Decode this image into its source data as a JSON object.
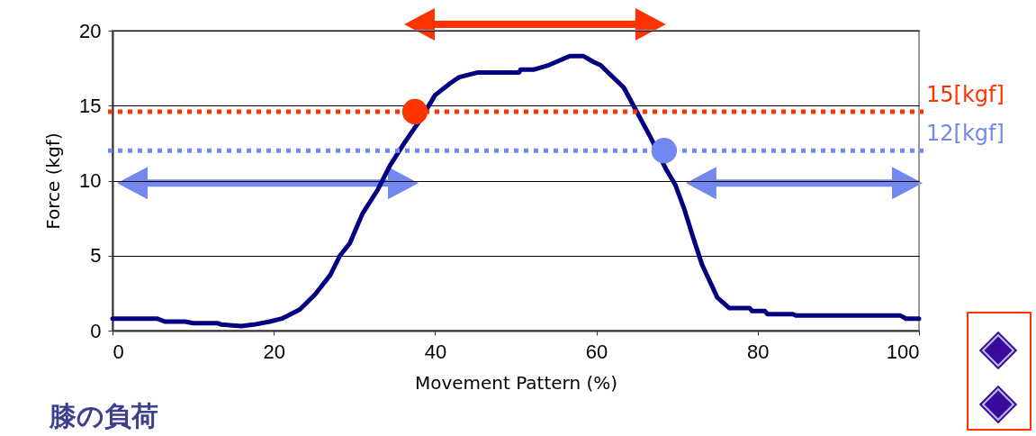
{
  "chart_data": {
    "type": "line",
    "xlabel": "Movement Pattern (%)",
    "ylabel": "Force (kgf)",
    "xlim": [
      0,
      100
    ],
    "ylim": [
      0,
      20
    ],
    "xticks": [
      0,
      20,
      40,
      60,
      80,
      100
    ],
    "yticks": [
      0,
      5,
      10,
      15,
      20
    ],
    "grid": "y",
    "marker": "none",
    "line_style": "solid",
    "series": [
      {
        "type": "line",
        "color": "#000080",
        "x": [
          0,
          5.5,
          6.5,
          9,
          10,
          13,
          13.5,
          16,
          17.5,
          19.5,
          21,
          23.2,
          25.1,
          27,
          28.2,
          29.4,
          31,
          32.9,
          34.4,
          36.3,
          38.1,
          40,
          41.9,
          43,
          45.2,
          50.4,
          50.6,
          52.2,
          54.1,
          56.7,
          58.4,
          59.7,
          60.5,
          63.4,
          64.9,
          66.8,
          68.6,
          69.8,
          70.9,
          72,
          73.1,
          75,
          76.5,
          79,
          79.3,
          80.9,
          81.2,
          84.3,
          84.8,
          97.7,
          98.4,
          100
        ],
        "values": [
          0.8,
          0.8,
          0.6,
          0.6,
          0.5,
          0.5,
          0.4,
          0.3,
          0.4,
          0.6,
          0.8,
          1.4,
          2.4,
          3.7,
          5,
          5.8,
          7.8,
          9.4,
          11,
          12.6,
          14,
          15.7,
          16.5,
          16.9,
          17.2,
          17.2,
          17.4,
          17.4,
          17.7,
          18.3,
          18.3,
          17.9,
          17.7,
          16.2,
          14.7,
          12.8,
          10.8,
          9.7,
          8.1,
          6.2,
          4.4,
          2.2,
          1.5,
          1.5,
          1.3,
          1.3,
          1.1,
          1.1,
          1,
          1,
          0.8,
          0.8
        ]
      },
      {
        "type": "scatter",
        "color": "#ff3300",
        "marker": "circle",
        "x": [
          37.5
        ],
        "values": [
          14.6
        ]
      },
      {
        "type": "scatter",
        "color": "#7088f0",
        "marker": "circle",
        "x": [
          68.4
        ],
        "values": [
          12
        ]
      }
    ],
    "ref_lines": [
      {
        "axis": "y",
        "value": 14.6,
        "label": "15[kgf]",
        "color": "#ff3300",
        "line_style": "dotted"
      },
      {
        "axis": "y",
        "value": 12,
        "label": "12[kgf]",
        "color": "#7088f0",
        "line_style": "dotted"
      }
    ],
    "annotations": [
      "膝の負荷"
    ]
  }
}
